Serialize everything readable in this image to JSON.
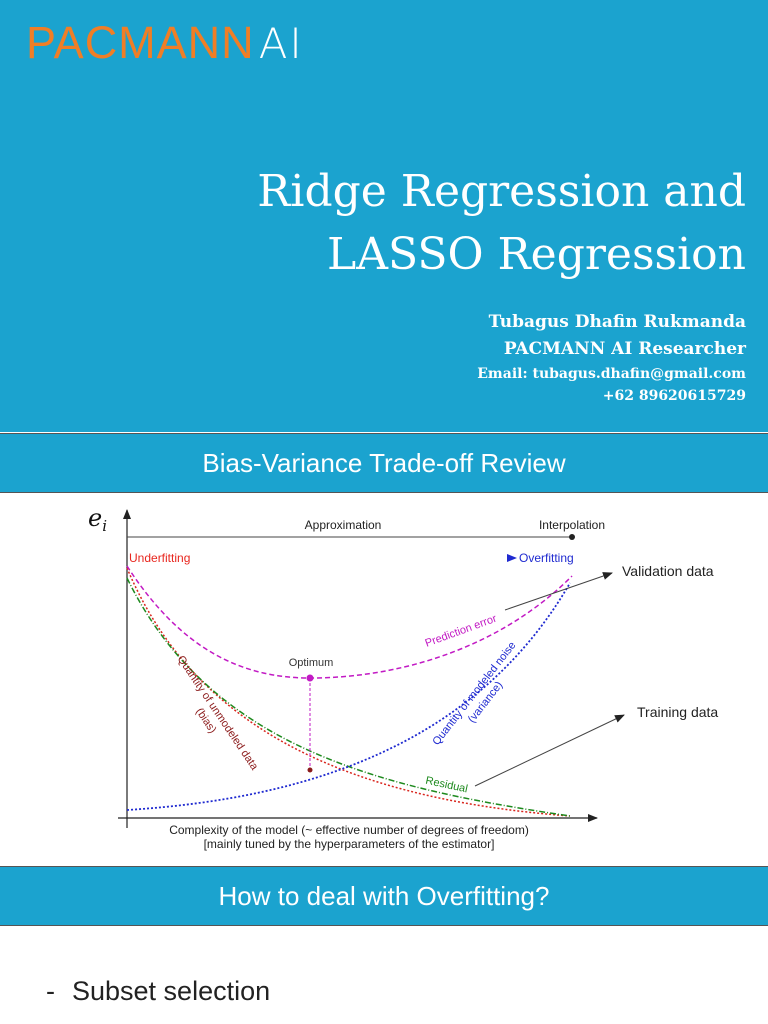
{
  "logo": {
    "main": "PACMANN",
    "suffix": "AI"
  },
  "title": {
    "line1": "Ridge Regression and",
    "line2": "LASSO Regression"
  },
  "author": {
    "name": "Tubagus Dhafin Rukmanda",
    "role": "PACMANN AI Researcher",
    "email": "Email: tubagus.dhafin@gmail.com",
    "phone": "+62 89620615729"
  },
  "section1": {
    "heading": "Bias-Variance Trade-off Review"
  },
  "diagram": {
    "y_axis_symbol": "e",
    "y_axis_subscript": "i",
    "approximation": "Approximation",
    "interpolation": "Interpolation",
    "underfitting": "Underfitting",
    "overfitting": "Overfitting",
    "validation_data": "Validation data",
    "training_data": "Training data",
    "prediction_error": "Prediction error",
    "optimum": "Optimum",
    "bias_line1": "Quantity of unmodeled data",
    "bias_line2": "(bias)",
    "variance_line1": "Quantity of modeled noise",
    "variance_line2": "(variance)",
    "residual": "Residual",
    "x_label_line1": "Complexity of the model (~ effective number of degrees of freedom)",
    "x_label_line2": "[mainly tuned by the hyperparameters of the estimator]",
    "colors": {
      "underfitting": "#e8261e",
      "overfitting": "#1f2ad0",
      "prediction_error": "#c21ac4",
      "bias": "#8b1a1a",
      "variance": "#1f2ad0",
      "residual": "#1e8a1e"
    }
  },
  "section2": {
    "heading": "How to deal with Overfitting?"
  },
  "bullets": [
    {
      "dash": "-",
      "text": "Subset selection"
    }
  ]
}
